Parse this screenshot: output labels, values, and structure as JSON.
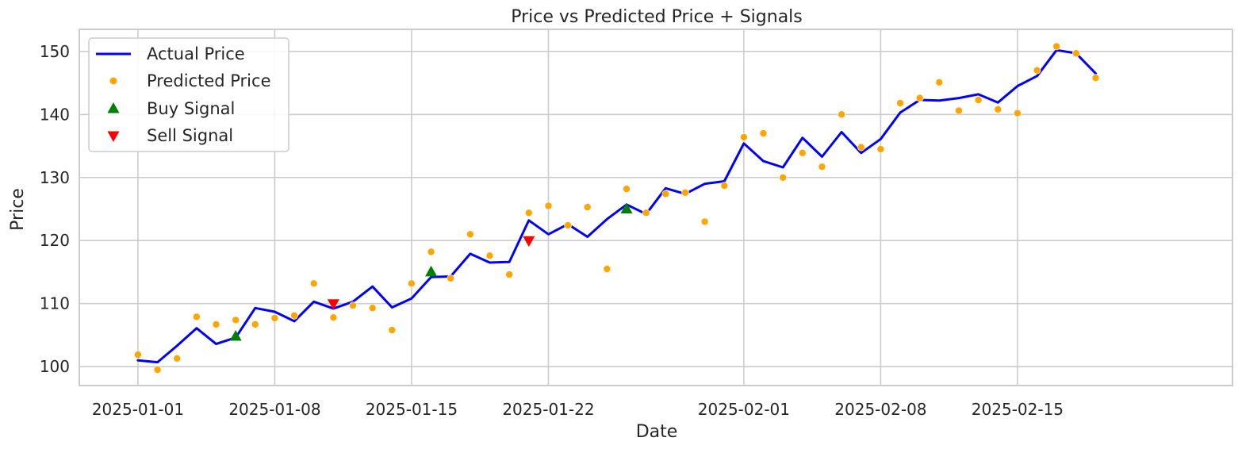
{
  "chart_data": {
    "type": "line",
    "title": "Price vs Predicted Price + Signals",
    "xlabel": "Date",
    "ylabel": "Price",
    "x_type": "date",
    "xlim": [
      "2024-12-29",
      "2025-02-26"
    ],
    "ylim": [
      97,
      153.5
    ],
    "x_ticks": [
      "2025-01-01",
      "2025-01-08",
      "2025-01-15",
      "2025-01-22",
      "2025-02-01",
      "2025-02-08",
      "2025-02-15"
    ],
    "y_ticks": [
      100,
      110,
      120,
      130,
      140,
      150
    ],
    "grid": true,
    "legend_position": "top-left",
    "colors": {
      "actual": "#0000ff",
      "predicted": "#ffa500",
      "buy": "#008000",
      "sell": "#ff0000",
      "grid": "#cccccc",
      "frame": "#cccccc"
    },
    "series": [
      {
        "name": "Actual Price",
        "kind": "line",
        "x": [
          "2025-01-01",
          "2025-01-02",
          "2025-01-03",
          "2025-01-04",
          "2025-01-05",
          "2025-01-06",
          "2025-01-07",
          "2025-01-08",
          "2025-01-09",
          "2025-01-10",
          "2025-01-11",
          "2025-01-12",
          "2025-01-13",
          "2025-01-14",
          "2025-01-15",
          "2025-01-16",
          "2025-01-17",
          "2025-01-18",
          "2025-01-19",
          "2025-01-20",
          "2025-01-21",
          "2025-01-22",
          "2025-01-23",
          "2025-01-24",
          "2025-01-25",
          "2025-01-26",
          "2025-01-27",
          "2025-01-28",
          "2025-01-29",
          "2025-01-30",
          "2025-01-31",
          "2025-02-01",
          "2025-02-02",
          "2025-02-03",
          "2025-02-04",
          "2025-02-05",
          "2025-02-06",
          "2025-02-07",
          "2025-02-08",
          "2025-02-09",
          "2025-02-10",
          "2025-02-11",
          "2025-02-12",
          "2025-02-13",
          "2025-02-14",
          "2025-02-15",
          "2025-02-16",
          "2025-02-17",
          "2025-02-18",
          "2025-02-19"
        ],
        "y": [
          101.0,
          100.7,
          103.3,
          106.1,
          103.6,
          104.6,
          109.3,
          108.7,
          107.2,
          110.3,
          109.2,
          110.3,
          112.7,
          109.4,
          110.8,
          114.2,
          114.3,
          117.9,
          116.5,
          116.6,
          123.2,
          121.0,
          122.6,
          120.6,
          123.4,
          125.7,
          124.2,
          128.3,
          127.4,
          129.0,
          129.4,
          135.4,
          132.6,
          131.6,
          136.3,
          133.3,
          137.2,
          133.9,
          136.1,
          140.3,
          142.3,
          142.2,
          142.6,
          143.2,
          141.9,
          144.5,
          146.1,
          150.2,
          149.7,
          146.5
        ]
      },
      {
        "name": "Predicted Price",
        "kind": "scatter",
        "x": [
          "2025-01-01",
          "2025-01-02",
          "2025-01-03",
          "2025-01-04",
          "2025-01-05",
          "2025-01-06",
          "2025-01-07",
          "2025-01-08",
          "2025-01-09",
          "2025-01-10",
          "2025-01-11",
          "2025-01-12",
          "2025-01-13",
          "2025-01-14",
          "2025-01-15",
          "2025-01-16",
          "2025-01-17",
          "2025-01-18",
          "2025-01-19",
          "2025-01-20",
          "2025-01-21",
          "2025-01-22",
          "2025-01-23",
          "2025-01-24",
          "2025-01-25",
          "2025-01-26",
          "2025-01-27",
          "2025-01-28",
          "2025-01-29",
          "2025-01-30",
          "2025-01-31",
          "2025-02-01",
          "2025-02-02",
          "2025-02-03",
          "2025-02-04",
          "2025-02-05",
          "2025-02-06",
          "2025-02-07",
          "2025-02-08",
          "2025-02-09",
          "2025-02-10",
          "2025-02-11",
          "2025-02-12",
          "2025-02-13",
          "2025-02-14",
          "2025-02-15",
          "2025-02-16",
          "2025-02-17",
          "2025-02-18",
          "2025-02-19"
        ],
        "y": [
          101.9,
          99.5,
          101.3,
          107.9,
          106.7,
          107.4,
          106.7,
          107.7,
          108.1,
          113.2,
          107.8,
          109.7,
          109.3,
          105.8,
          113.2,
          118.2,
          114.0,
          121.0,
          117.6,
          114.6,
          124.4,
          125.5,
          122.4,
          125.3,
          115.5,
          128.2,
          124.4,
          127.4,
          127.6,
          123.0,
          128.7,
          136.4,
          137.0,
          130.0,
          133.9,
          131.7,
          140.0,
          134.8,
          134.5,
          141.8,
          142.6,
          145.1,
          140.6,
          142.3,
          140.8,
          140.2,
          147.0,
          150.8,
          149.7,
          145.8
        ]
      },
      {
        "name": "Buy Signal",
        "kind": "marker-up",
        "x": [
          "2025-01-06",
          "2025-01-16",
          "2025-01-26"
        ],
        "y": [
          104.8,
          115.0,
          125.0
        ]
      },
      {
        "name": "Sell Signal",
        "kind": "marker-down",
        "x": [
          "2025-01-11",
          "2025-01-21"
        ],
        "y": [
          110.0,
          120.0
        ]
      }
    ]
  }
}
